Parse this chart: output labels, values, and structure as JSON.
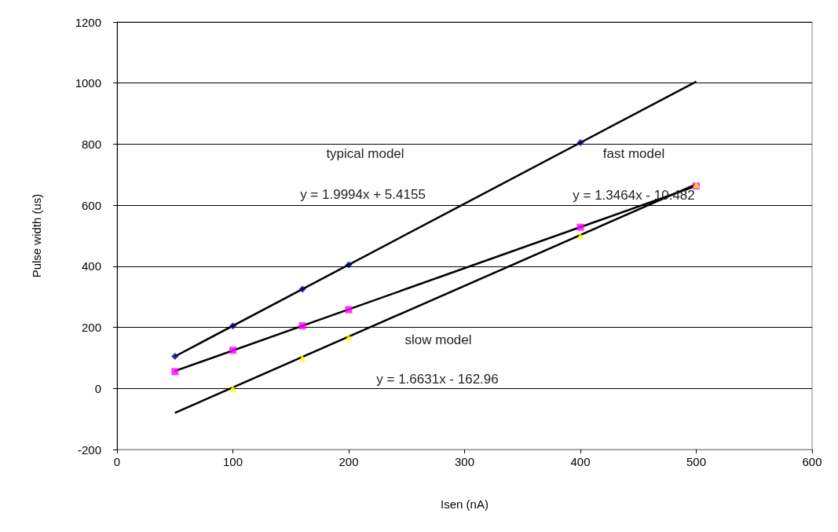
{
  "chart_data": {
    "type": "scatter",
    "xlabel": "Isen (nA)",
    "ylabel": "Pulse width (us)",
    "xlim": [
      0,
      600
    ],
    "xticks": [
      0,
      100,
      200,
      300,
      400,
      500,
      600
    ],
    "ylim": [
      -200,
      1200
    ],
    "yticks": [
      -200,
      0,
      200,
      400,
      600,
      800,
      1000,
      1200
    ],
    "grid": "y",
    "series": [
      {
        "type": "line",
        "color": "#000000",
        "x": [
          50,
          500
        ],
        "values": [
          105,
          1005
        ]
      },
      {
        "type": "line",
        "color": "#000000",
        "x": [
          50,
          500
        ],
        "values": [
          57,
          663
        ]
      },
      {
        "type": "line",
        "color": "#000000",
        "x": [
          50,
          500
        ],
        "values": [
          -80,
          669
        ]
      },
      {
        "marker": "diamond",
        "color": "#000080",
        "x": [
          50,
          100,
          160,
          200,
          400
        ],
        "values": [
          105,
          205,
          325,
          405,
          805
        ]
      },
      {
        "marker": "square",
        "color": "#ff00ff",
        "x": [
          50,
          100,
          160,
          200,
          400,
          500
        ],
        "values": [
          55,
          125,
          205,
          258,
          528,
          663
        ]
      },
      {
        "marker": "triangle",
        "color": "#ffff00",
        "x": [
          100,
          160,
          200,
          400,
          500
        ],
        "values": [
          0,
          100,
          168,
          500,
          667
        ]
      }
    ],
    "annotations": [
      "typical model",
      "y = 1.9994x + 5.4155",
      "fast model",
      "y = 1.3464x - 10.482",
      "slow model",
      "y = 1.6631x - 162.96"
    ]
  }
}
